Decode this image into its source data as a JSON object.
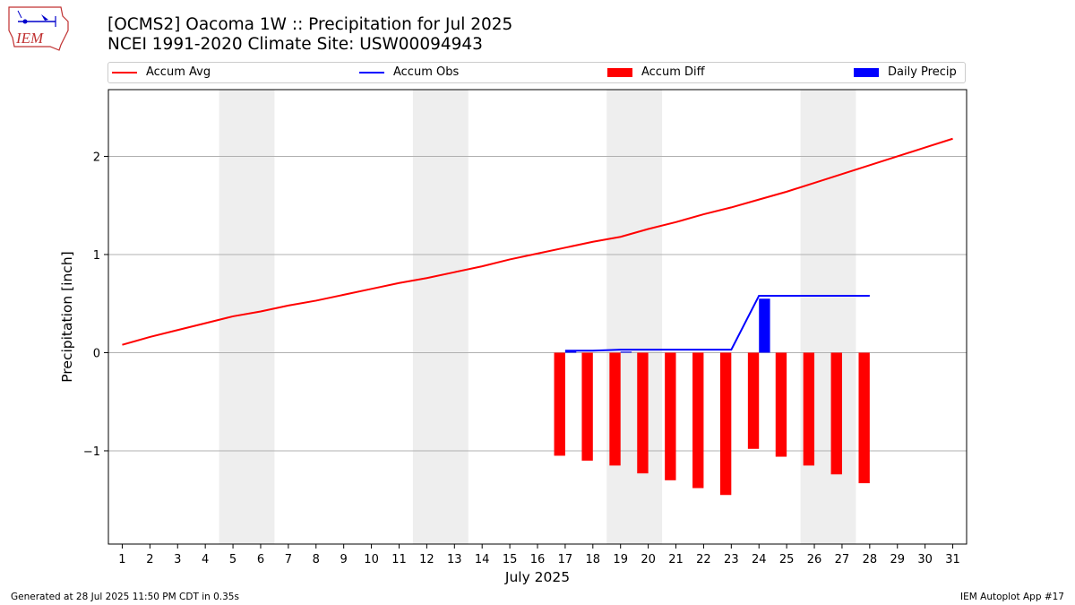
{
  "header": {
    "title_line1": "[OCMS2] Oacoma 1W :: Precipitation for Jul 2025",
    "title_line2": "NCEI 1991-2020 Climate Site: USW00094943",
    "logo_text": "IEM"
  },
  "legend": {
    "items": [
      {
        "label": "Accum Avg",
        "color": "#ff0000",
        "kind": "line"
      },
      {
        "label": "Accum Obs",
        "color": "#0000ff",
        "kind": "line"
      },
      {
        "label": "Accum Diff",
        "color": "#ff0000",
        "kind": "box"
      },
      {
        "label": "Daily Precip",
        "color": "#0000ff",
        "kind": "box"
      }
    ]
  },
  "footer": {
    "left": "Generated at 28 Jul 2025 11:50 PM CDT in 0.35s",
    "right": "IEM Autoplot App #17"
  },
  "chart_data": {
    "type": "bar",
    "xlabel": "July 2025",
    "ylabel": "Precipitation [inch]",
    "xlim": [
      0.5,
      31.5
    ],
    "ylim": [
      -1.95,
      2.68
    ],
    "x_ticks": [
      1,
      2,
      3,
      4,
      5,
      6,
      7,
      8,
      9,
      10,
      11,
      12,
      13,
      14,
      15,
      16,
      17,
      18,
      19,
      20,
      21,
      22,
      23,
      24,
      25,
      26,
      27,
      28,
      29,
      30,
      31
    ],
    "y_ticks": [
      -1,
      0,
      1,
      2
    ],
    "y_tick_labels": [
      "−1",
      "0",
      "1",
      "2"
    ],
    "grid": "horizontal",
    "legend_placement": "top",
    "weekend_bands": [
      [
        4.5,
        6.5
      ],
      [
        11.5,
        13.5
      ],
      [
        18.5,
        20.5
      ],
      [
        25.5,
        27.5
      ]
    ],
    "weekend_color": "#eeeeee",
    "series": [
      {
        "name": "Accum Avg",
        "type": "line",
        "color": "#ff0000",
        "x": [
          1,
          2,
          3,
          4,
          5,
          6,
          7,
          8,
          9,
          10,
          11,
          12,
          13,
          14,
          15,
          16,
          17,
          18,
          19,
          20,
          21,
          22,
          23,
          24,
          25,
          26,
          27,
          28,
          29,
          30,
          31
        ],
        "values": [
          0.08,
          0.16,
          0.23,
          0.3,
          0.37,
          0.42,
          0.48,
          0.53,
          0.59,
          0.65,
          0.71,
          0.76,
          0.82,
          0.88,
          0.95,
          1.01,
          1.07,
          1.13,
          1.18,
          1.26,
          1.33,
          1.41,
          1.48,
          1.56,
          1.64,
          1.73,
          1.82,
          1.91,
          2.0,
          2.09,
          2.18
        ]
      },
      {
        "name": "Accum Obs",
        "type": "line",
        "color": "#0000ff",
        "x": [
          17,
          18,
          19,
          20,
          21,
          22,
          23,
          24,
          25,
          26,
          27,
          28
        ],
        "values": [
          0.02,
          0.02,
          0.03,
          0.03,
          0.03,
          0.03,
          0.03,
          0.58,
          0.58,
          0.58,
          0.58,
          0.58
        ]
      },
      {
        "name": "Accum Diff",
        "type": "bar",
        "color": "#ff0000",
        "offset": -0.2,
        "x": [
          17,
          18,
          19,
          20,
          21,
          22,
          23,
          24,
          25,
          26,
          27,
          28
        ],
        "values": [
          -1.05,
          -1.1,
          -1.15,
          -1.23,
          -1.3,
          -1.38,
          -1.45,
          -0.98,
          -1.06,
          -1.15,
          -1.24,
          -1.33
        ]
      },
      {
        "name": "Daily Precip",
        "type": "bar",
        "color": "#0000ff",
        "offset": 0.2,
        "x": [
          17,
          18,
          19,
          20,
          21,
          22,
          23,
          24,
          25,
          26,
          27,
          28
        ],
        "values": [
          0.02,
          0.0,
          0.01,
          0.0,
          0.0,
          0.0,
          0.0,
          0.55,
          0.0,
          0.0,
          0.0,
          0.0
        ]
      }
    ]
  }
}
